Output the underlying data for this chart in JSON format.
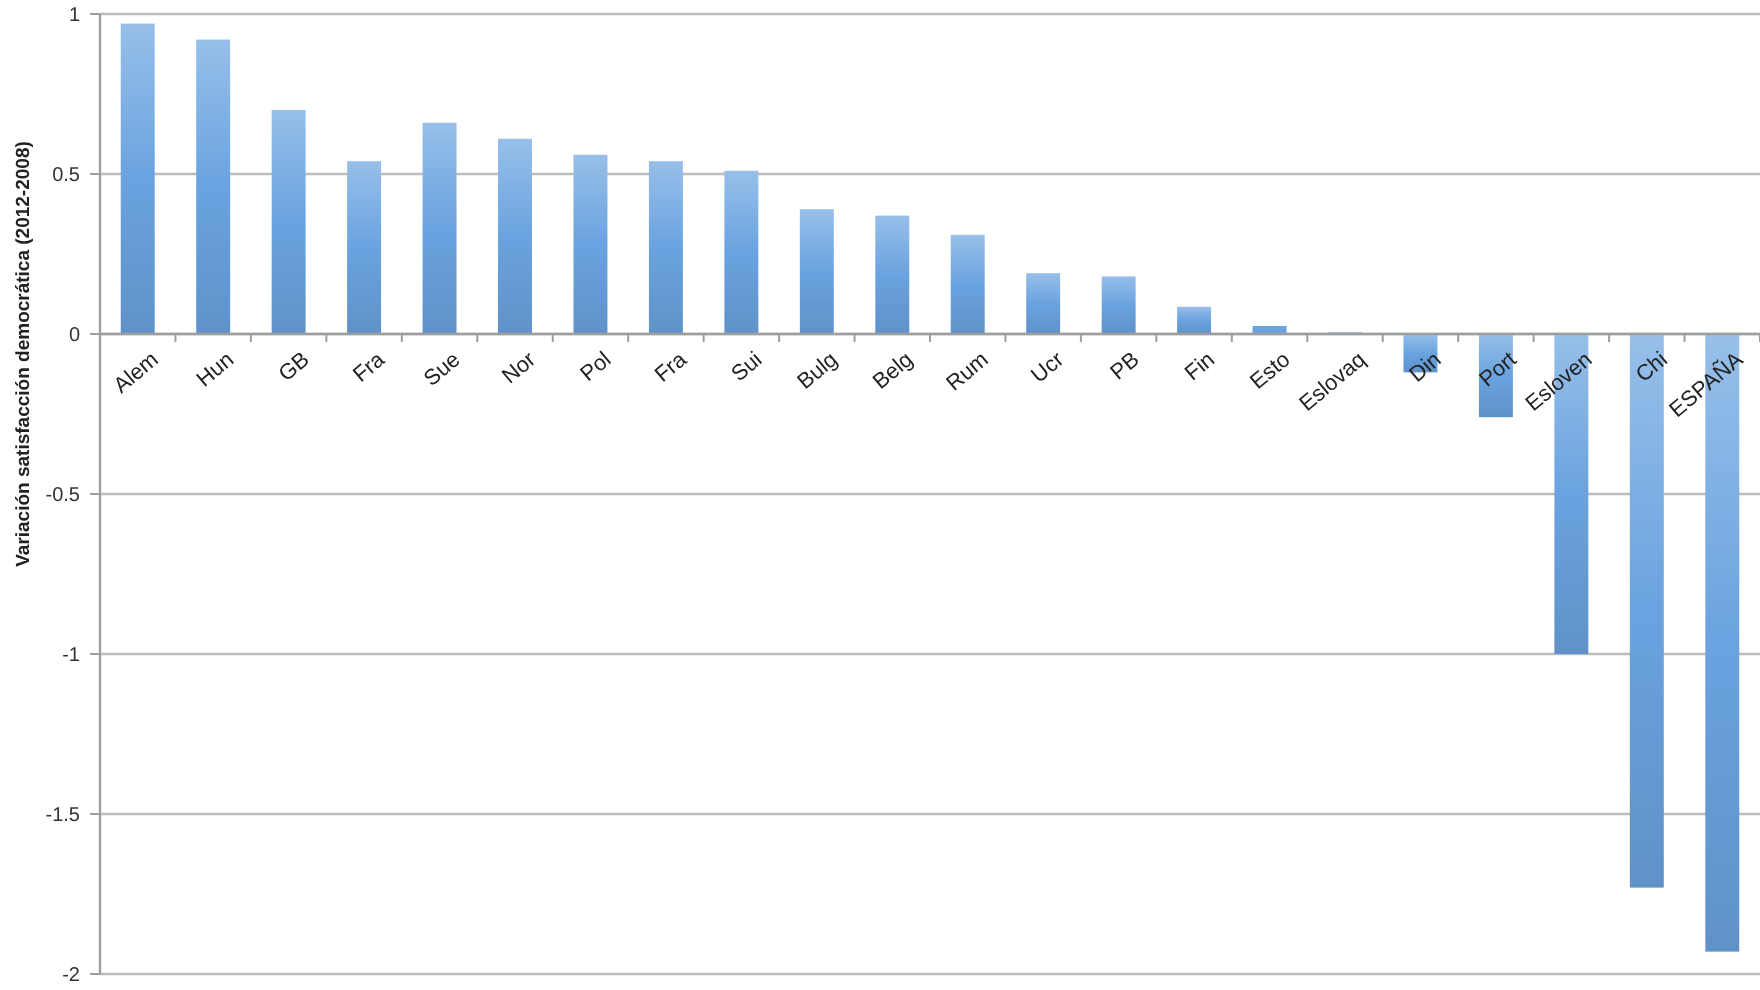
{
  "chart_data": {
    "type": "bar",
    "ylabel": "Variación satisfacción democrática (2012-2008)",
    "categories": [
      "Alem",
      "Hun",
      "GB",
      "Fra",
      "Sue",
      "Nor",
      "Pol",
      "Fra",
      "Sui",
      "Bulg",
      "Belg",
      "Rum",
      "Ucr",
      "PB",
      "Fin",
      "Esto",
      "Eslovaq",
      "Din",
      "Port",
      "Esloven",
      "Chi",
      "ESPAÑA"
    ],
    "values": [
      0.97,
      0.92,
      0.7,
      0.54,
      0.66,
      0.61,
      0.56,
      0.54,
      0.51,
      0.39,
      0.37,
      0.31,
      0.19,
      0.18,
      0.085,
      0.025,
      0.005,
      -0.12,
      -0.26,
      -1.0,
      -1.73,
      -1.93
    ],
    "color": "#6aa3e0",
    "ylim": [
      -2,
      1
    ],
    "yticks": [
      -2,
      -1.5,
      -1,
      -0.5,
      0,
      0.5,
      1
    ],
    "grid": "y"
  }
}
